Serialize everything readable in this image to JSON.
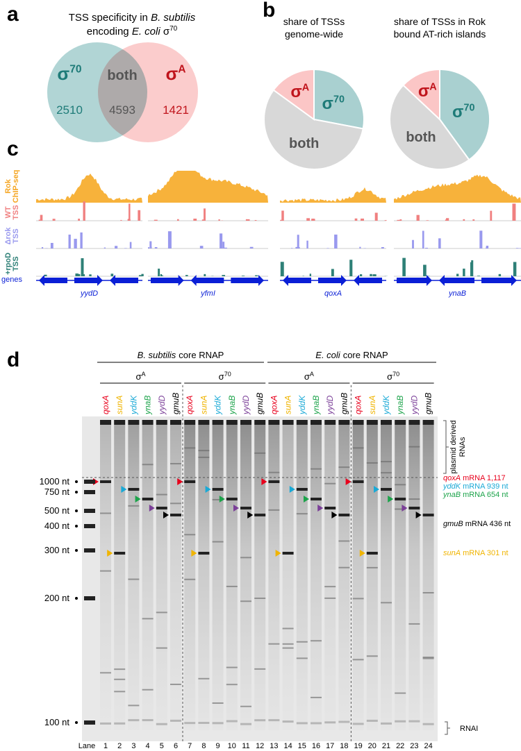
{
  "panel_a": {
    "letter": "a",
    "title": [
      "TSS specificity in ",
      "B. subtilis",
      "encoding ",
      "E. coli",
      " σ",
      "70"
    ],
    "venn": [
      {
        "name": "σ",
        "sup": "70",
        "count": "2510"
      },
      {
        "name": "both",
        "count": "4593"
      },
      {
        "name": "σ",
        "sup": "A",
        "count": "1421"
      }
    ]
  },
  "panel_b": {
    "letter": "b",
    "pies": [
      {
        "title": [
          "share of TSSs",
          "genome-wide"
        ],
        "slices": [
          {
            "name": "σ",
            "sup": "70",
            "value": 28
          },
          {
            "name": "both",
            "value": 57
          },
          {
            "name": "σ",
            "sup": "A",
            "value": 15
          }
        ]
      },
      {
        "title": [
          "share of TSSs in Rok",
          "bound AT-rich islands"
        ],
        "slices": [
          {
            "name": "σ",
            "sup": "70",
            "value": 40
          },
          {
            "name": "both",
            "value": 47
          },
          {
            "name": "σ",
            "sup": "A",
            "value": 13
          }
        ]
      }
    ]
  },
  "panel_c": {
    "letter": "c",
    "tracks": [
      [
        "Rok",
        "ChIP-seq"
      ],
      [
        "WT",
        "TSS"
      ],
      [
        "Δrok",
        "TSS"
      ],
      [
        "+rpoD",
        "TSS"
      ]
    ],
    "genes_label": "genes",
    "gene_names": [
      "yydD",
      "yfmI",
      "qoxA",
      "ynaB"
    ]
  },
  "panel_d": {
    "letter": "d",
    "rnap": [
      {
        "organism": "B. subtilis",
        "text": "core RNAP"
      },
      {
        "organism": "E. coli",
        "text": "core RNAP"
      }
    ],
    "sigma": [
      {
        "base": "σ",
        "sup": "A"
      },
      {
        "base": "σ",
        "sup": "70"
      },
      {
        "base": "σ",
        "sup": "A"
      },
      {
        "base": "σ",
        "sup": "70"
      }
    ],
    "genes": [
      {
        "name": "qoxA",
        "color": "#e8001c"
      },
      {
        "name": "sunA",
        "color": "#f0b400"
      },
      {
        "name": "yddK",
        "color": "#19a9d6"
      },
      {
        "name": "ynaB",
        "color": "#1ca34a"
      },
      {
        "name": "yydD",
        "color": "#7b3f98"
      },
      {
        "name": "gmuB",
        "color": "#000000"
      }
    ],
    "ladder": [
      "1000 nt",
      "750 nt",
      "500 nt",
      "400 nt",
      "300 nt",
      "200 nt",
      "100 nt"
    ],
    "lane_label": "Lane",
    "lanes": [
      1,
      2,
      3,
      4,
      5,
      6,
      7,
      8,
      9,
      10,
      11,
      12,
      13,
      14,
      15,
      16,
      17,
      18,
      19,
      20,
      21,
      22,
      23,
      24
    ],
    "annotations": [
      {
        "gene": "qoxA",
        "text": "mRNA 1,117",
        "color": "#e8001c"
      },
      {
        "gene": "yddK",
        "text": "mRNA 939 nt",
        "color": "#19a9d6"
      },
      {
        "gene": "ynaB",
        "text": "mRNA 654 nt",
        "color": "#1ca34a"
      },
      {
        "gene": "gmuB",
        "text": "mRNA 436 nt",
        "color": "#000000"
      },
      {
        "gene": "sunA",
        "text": "mRNA 301 nt",
        "color": "#f0b400"
      }
    ],
    "plasmid_label": [
      "plasmid derived",
      "RNAs"
    ],
    "rnai_label": "RNAI"
  }
}
